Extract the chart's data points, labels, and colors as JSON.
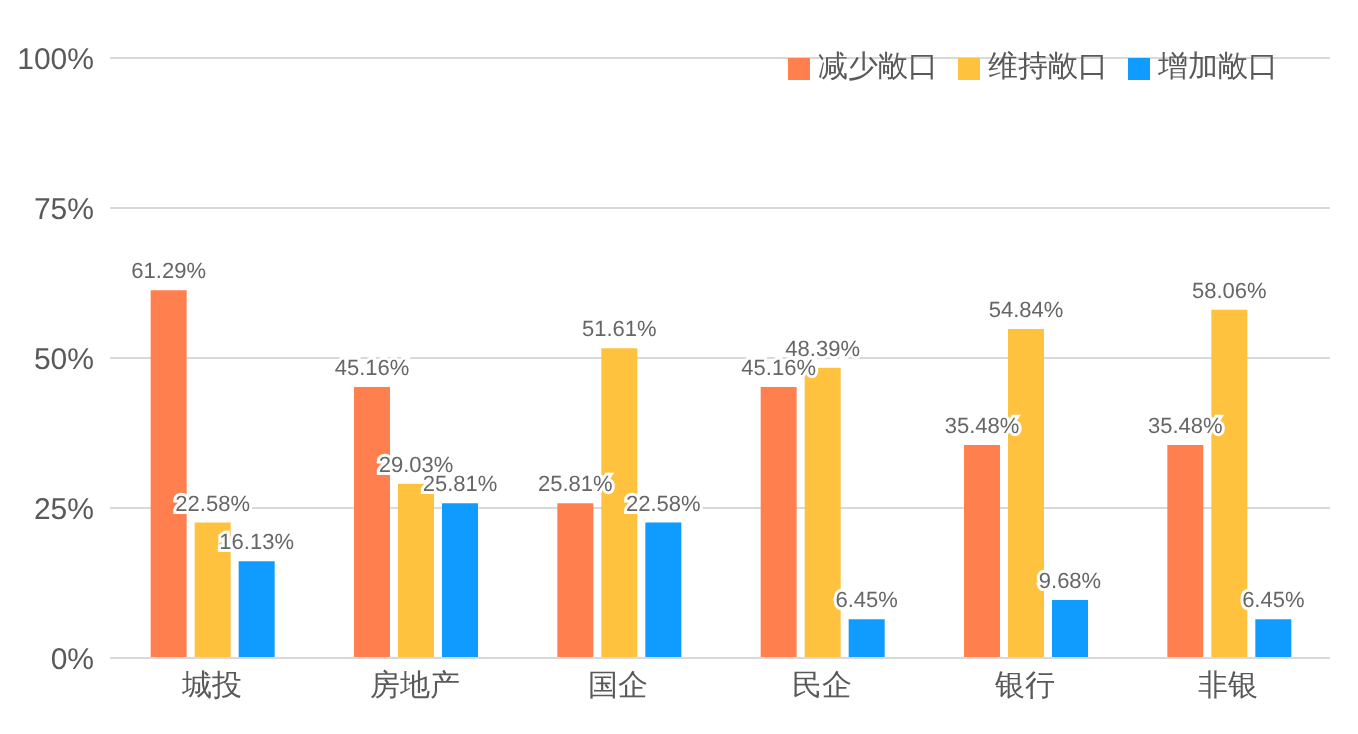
{
  "chart_data": {
    "type": "bar",
    "categories": [
      "城投",
      "房地产",
      "国企",
      "民企",
      "银行",
      "非银"
    ],
    "series": [
      {
        "name": "减少敞口",
        "color": "#ff7f4f",
        "values": [
          61.29,
          45.16,
          25.81,
          45.16,
          35.48,
          35.48
        ],
        "value_labels": [
          "61.29%",
          "45.16%",
          "25.81%",
          "45.16%",
          "35.48%",
          "35.48%"
        ]
      },
      {
        "name": "维持敞口",
        "color": "#ffc23f",
        "values": [
          22.58,
          29.03,
          51.61,
          48.39,
          54.84,
          58.06
        ],
        "value_labels": [
          "22.58%",
          "29.03%",
          "51.61%",
          "48.39%",
          "54.84%",
          "58.06%"
        ]
      },
      {
        "name": "增加敞口",
        "color": "#0f9bff",
        "values": [
          16.13,
          25.81,
          22.58,
          6.45,
          9.68,
          6.45
        ],
        "value_labels": [
          "16.13%",
          "25.81%",
          "22.58%",
          "6.45%",
          "9.68%",
          "6.45%"
        ]
      }
    ],
    "ylim": [
      0,
      100
    ],
    "yticks": [
      {
        "value": 0,
        "label": "0%"
      },
      {
        "value": 25,
        "label": "25%"
      },
      {
        "value": 50,
        "label": "50%"
      },
      {
        "value": 75,
        "label": "75%"
      },
      {
        "value": 100,
        "label": "100%"
      }
    ],
    "grid": "y",
    "legend": "top right"
  }
}
